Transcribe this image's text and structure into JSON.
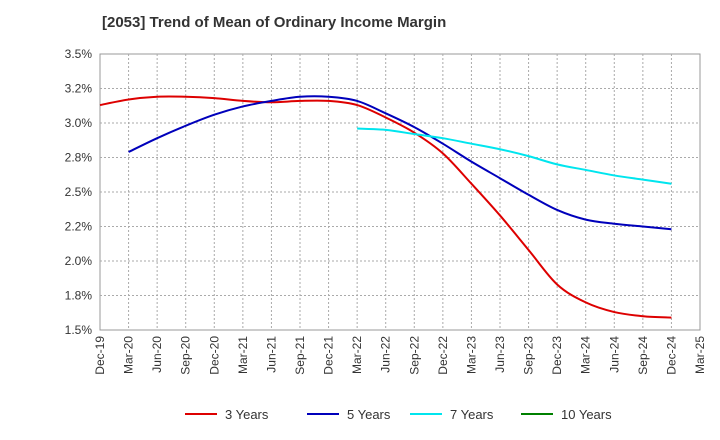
{
  "chart_data": {
    "type": "line",
    "title": "[2053]  Trend of Mean of Ordinary Income Margin",
    "xlabel": "",
    "ylabel": "",
    "categories": [
      "Dec-19",
      "Mar-20",
      "Jun-20",
      "Sep-20",
      "Dec-20",
      "Mar-21",
      "Jun-21",
      "Sep-21",
      "Dec-21",
      "Mar-22",
      "Jun-22",
      "Sep-22",
      "Dec-22",
      "Mar-23",
      "Jun-23",
      "Sep-23",
      "Dec-23",
      "Mar-24",
      "Jun-24",
      "Sep-24",
      "Dec-24",
      "Mar-25"
    ],
    "y_ticks": [
      "1.5%",
      "1.8%",
      "2.0%",
      "2.2%",
      "2.5%",
      "2.8%",
      "3.0%",
      "3.2%",
      "3.5%"
    ],
    "ylim": [
      1.5,
      3.5
    ],
    "grid": true,
    "legend_position": "bottom",
    "series": [
      {
        "name": "3 Years",
        "color": "#dd0000",
        "values": [
          3.13,
          3.17,
          3.19,
          3.19,
          3.18,
          3.16,
          3.15,
          3.16,
          3.16,
          3.13,
          3.04,
          2.93,
          2.78,
          2.56,
          2.33,
          2.08,
          1.83,
          1.7,
          1.63,
          1.6,
          1.59,
          null
        ]
      },
      {
        "name": "5 Years",
        "color": "#0000bb",
        "values": [
          null,
          2.79,
          2.89,
          2.98,
          3.06,
          3.12,
          3.16,
          3.19,
          3.19,
          3.16,
          3.07,
          2.97,
          2.85,
          2.72,
          2.6,
          2.48,
          2.37,
          2.3,
          2.27,
          2.25,
          2.23,
          null
        ]
      },
      {
        "name": "7 Years",
        "color": "#00e5ee",
        "values": [
          null,
          null,
          null,
          null,
          null,
          null,
          null,
          null,
          null,
          2.96,
          2.95,
          2.92,
          2.89,
          2.85,
          2.81,
          2.76,
          2.7,
          2.66,
          2.62,
          2.59,
          2.56,
          null
        ]
      },
      {
        "name": "10 Years",
        "color": "#008000",
        "values": [
          null,
          null,
          null,
          null,
          null,
          null,
          null,
          null,
          null,
          null,
          null,
          null,
          null,
          null,
          null,
          null,
          null,
          null,
          null,
          null,
          null,
          null
        ]
      }
    ]
  }
}
